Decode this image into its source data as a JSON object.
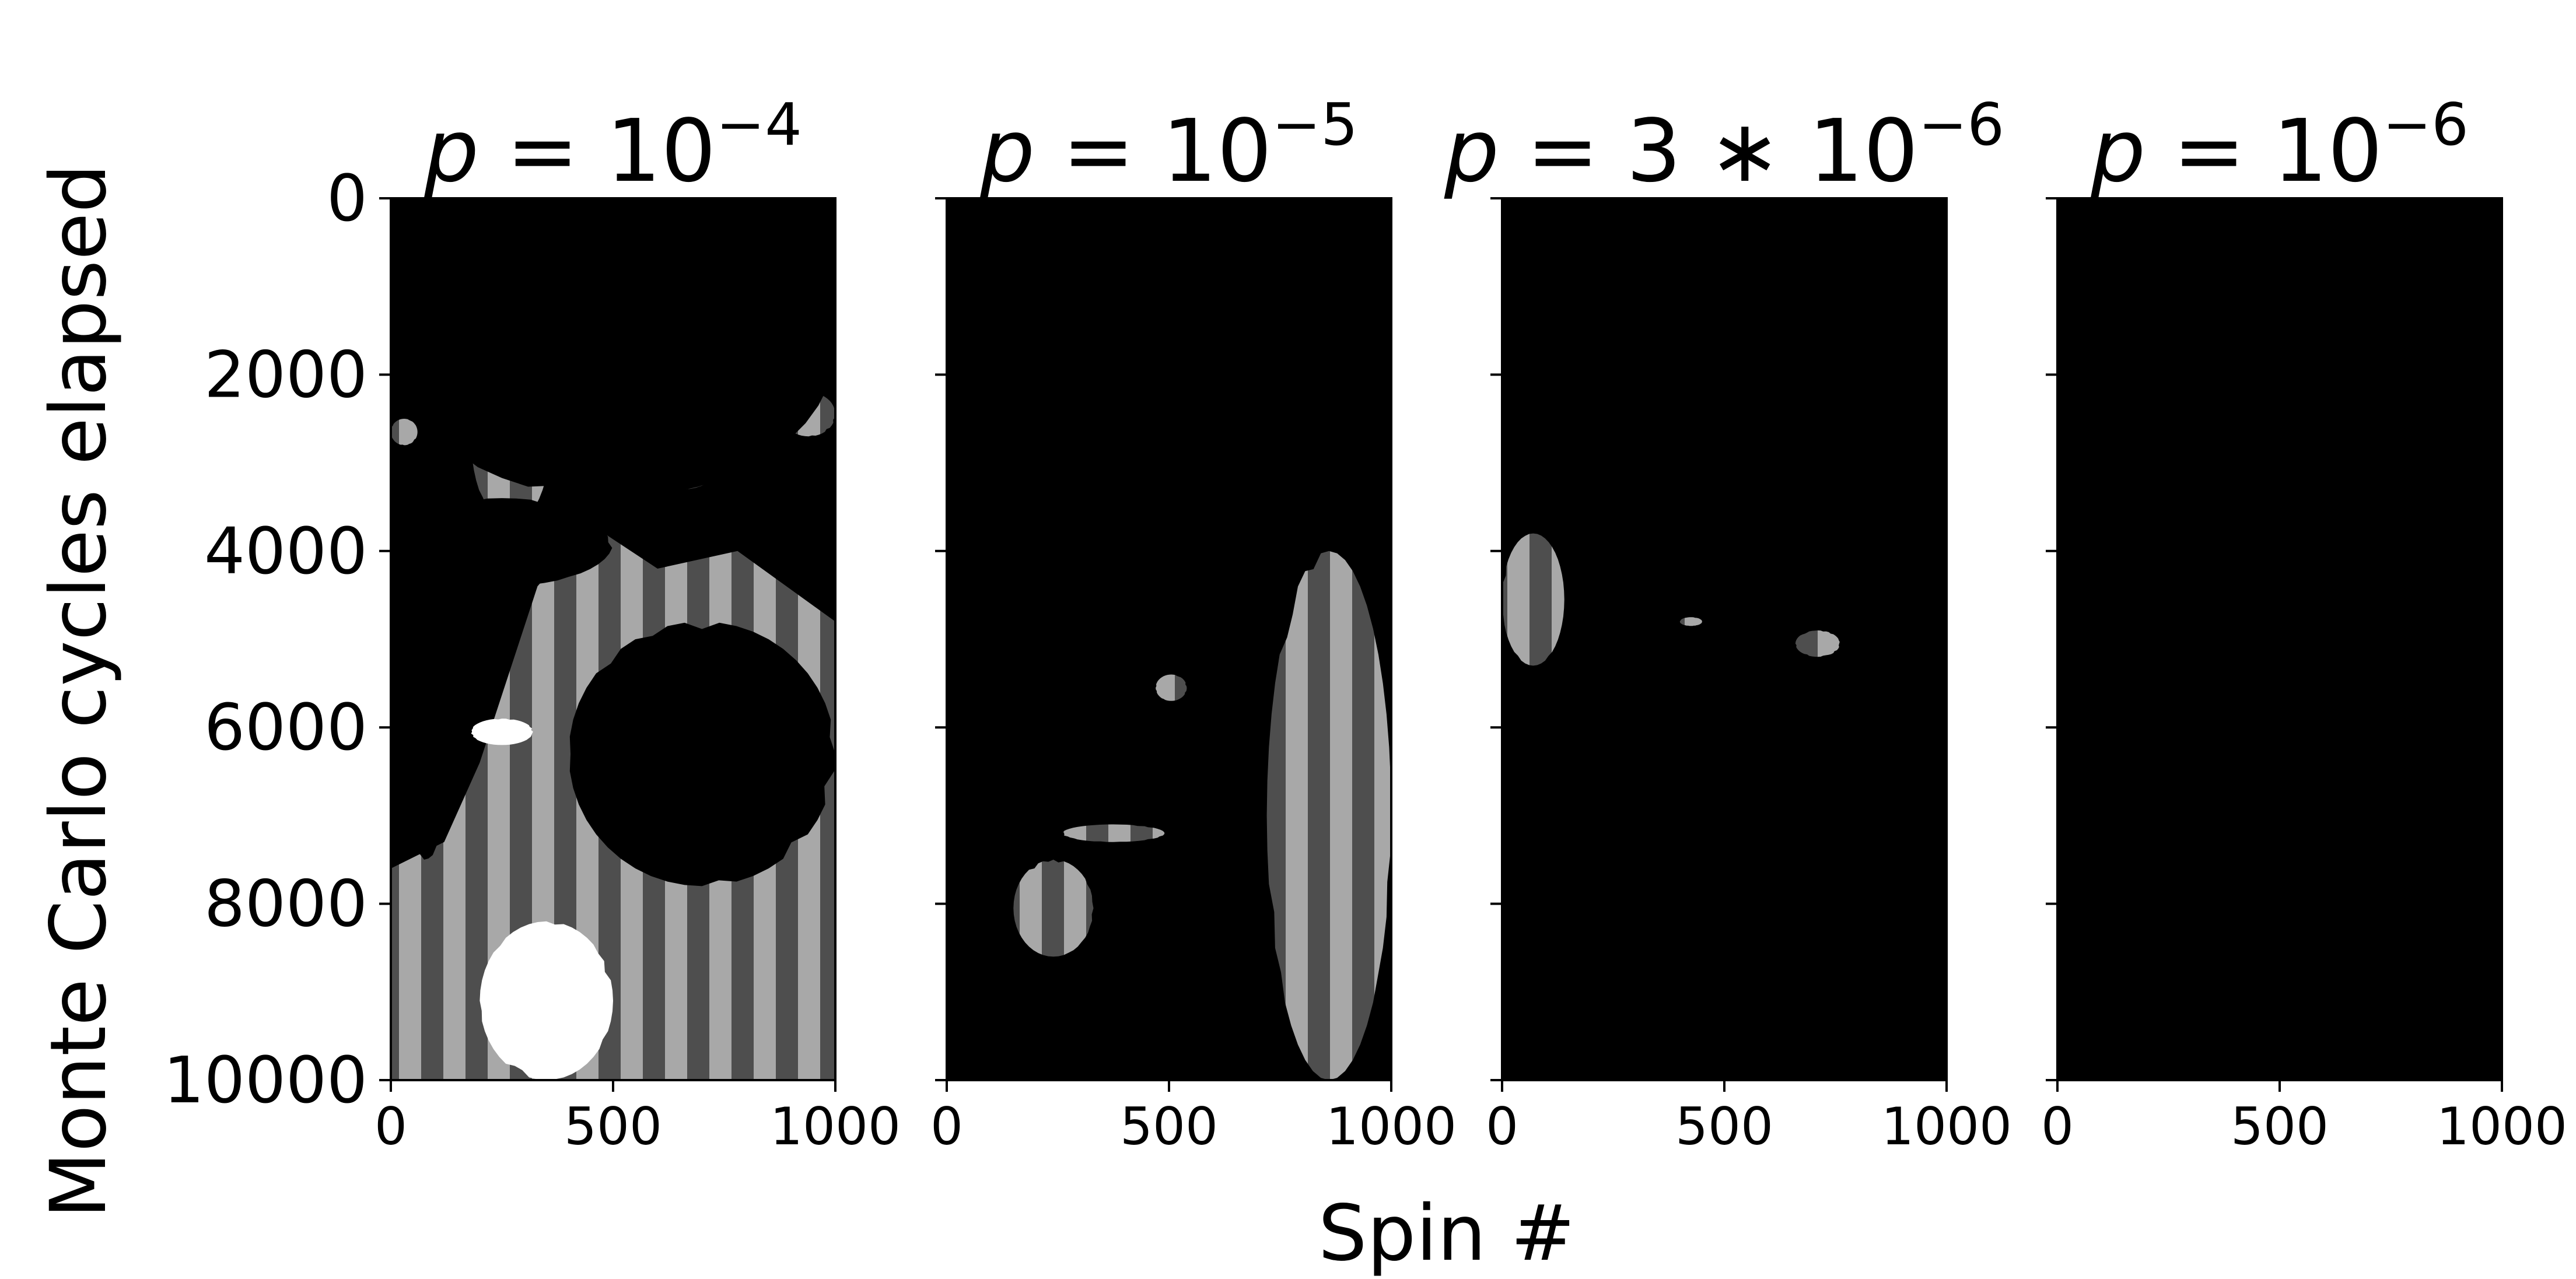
{
  "chart_data": {
    "type": "heatmap",
    "colormap": "gray",
    "ylabel": "Monte Carlo cycles elapsed",
    "xlabel": "Spin #",
    "shared_y_axis": true,
    "y_axis_inverted": true,
    "panels": [
      {
        "title": {
          "prefix": "p = ",
          "base": "10",
          "exponent": "−4"
        },
        "xlim": [
          0,
          1000
        ],
        "ylim": [
          10000,
          0
        ],
        "xticks": [
          "0",
          "500",
          "1000"
        ],
        "yticks": [
          "0",
          "2000",
          "4000",
          "6000",
          "8000",
          "10000"
        ],
        "show_yticklabels": true,
        "stripe_period_spins": 100,
        "regions": [
          {
            "shade": 1.0,
            "x": [
              200,
              500
            ],
            "y": [
              8200,
              10000
            ]
          },
          {
            "shade": 1.0,
            "x": [
              180,
              320
            ],
            "y": [
              5900,
              6200
            ]
          },
          {
            "shade": 0.0,
            "x": [
              0,
              1000
            ],
            "y": [
              0,
              3400
            ]
          },
          {
            "shade": 0.0,
            "x": [
              0,
              500
            ],
            "y": [
              3400,
              4400
            ]
          },
          {
            "shade": 0.0,
            "x": [
              0,
              150
            ],
            "y": [
              4400,
              7500
            ]
          },
          {
            "shade": 0.0,
            "x": [
              400,
              1000
            ],
            "y": [
              4800,
              7800
            ]
          }
        ]
      },
      {
        "title": {
          "prefix": "p = ",
          "base": "10",
          "exponent": "−5"
        },
        "xlim": [
          0,
          1000
        ],
        "ylim": [
          10000,
          0
        ],
        "xticks": [
          "0",
          "500",
          "1000"
        ],
        "yticks": [
          "0",
          "2000",
          "4000",
          "6000",
          "8000",
          "10000"
        ],
        "show_yticklabels": false,
        "stripe_period_spins": 100,
        "regions": [
          {
            "shade": 0.5,
            "x": [
              720,
              1000
            ],
            "y": [
              4000,
              10000
            ]
          },
          {
            "shade": 0.5,
            "x": [
              150,
              330
            ],
            "y": [
              7500,
              8600
            ]
          },
          {
            "shade": 0.5,
            "x": [
              260,
              490
            ],
            "y": [
              7100,
              7300
            ]
          },
          {
            "shade": 0.5,
            "x": [
              470,
              540
            ],
            "y": [
              5400,
              5700
            ]
          }
        ]
      },
      {
        "title": {
          "prefix": "p = ",
          "base": "3 ∗ 10",
          "exponent": "−6"
        },
        "xlim": [
          0,
          1000
        ],
        "ylim": [
          10000,
          0
        ],
        "xticks": [
          "0",
          "500",
          "1000"
        ],
        "yticks": [
          "0",
          "2000",
          "4000",
          "6000",
          "8000",
          "10000"
        ],
        "show_yticklabels": false,
        "stripe_period_spins": 100,
        "regions": [
          {
            "shade": 0.5,
            "x": [
              0,
              140
            ],
            "y": [
              3800,
              5300
            ]
          },
          {
            "shade": 0.5,
            "x": [
              660,
              760
            ],
            "y": [
              4900,
              5200
            ]
          },
          {
            "shade": 0.5,
            "x": [
              400,
              450
            ],
            "y": [
              4750,
              4850
            ]
          }
        ]
      },
      {
        "title": {
          "prefix": "p = ",
          "base": "10",
          "exponent": "−6"
        },
        "xlim": [
          0,
          1000
        ],
        "ylim": [
          10000,
          0
        ],
        "xticks": [
          "0",
          "500",
          "1000"
        ],
        "yticks": [
          "0",
          "2000",
          "4000",
          "6000",
          "8000",
          "10000"
        ],
        "show_yticklabels": false,
        "stripe_period_spins": 100,
        "regions": []
      }
    ]
  }
}
